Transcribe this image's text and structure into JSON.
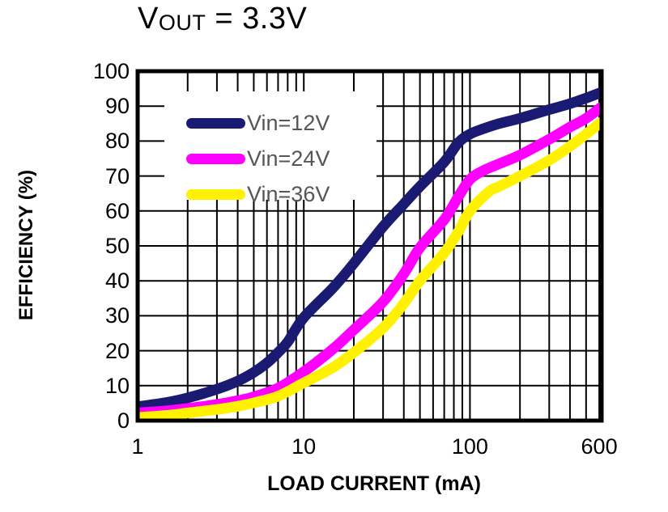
{
  "title": {
    "prefix": "V",
    "subscript": "OUT",
    "suffix": " = 3.3V"
  },
  "colors": {
    "grid": "#000000",
    "border": "#000000",
    "legend_text": "#55565a",
    "background": "#ffffff",
    "series_12v": "#1a1a72",
    "series_24v": "#ff00ff",
    "series_36v": "#fff100"
  },
  "chart_data": {
    "type": "line",
    "title": "VOUT = 3.3V",
    "xlabel": "LOAD CURRENT (mA)",
    "ylabel": "EFFICIENCY (%)",
    "x_scale": "log",
    "xlim": [
      1,
      620
    ],
    "ylim": [
      0,
      100
    ],
    "grid": "on",
    "legend_position": "upper-left-inside",
    "x_ticks": [
      {
        "value": 1,
        "label": "1"
      },
      {
        "value": 10,
        "label": "10"
      },
      {
        "value": 100,
        "label": "100"
      },
      {
        "value": 600,
        "label": "600"
      }
    ],
    "y_ticks": [
      0,
      10,
      20,
      30,
      40,
      50,
      60,
      70,
      80,
      90,
      100
    ],
    "series": [
      {
        "name": "Vin=12V",
        "color": "#1a1a72",
        "x": [
          1,
          1.5,
          2,
          3,
          4,
          5,
          6,
          7,
          8,
          10,
          15,
          20,
          30,
          40,
          50,
          70,
          85,
          100,
          120,
          150,
          200,
          300,
          400,
          500,
          620
        ],
        "y": [
          4,
          5.2,
          6.5,
          9,
          11.3,
          13.8,
          16.5,
          19.5,
          22.5,
          29.5,
          38,
          45,
          55.5,
          62,
          67,
          74,
          79.5,
          82,
          83.5,
          85,
          86.5,
          89,
          90.7,
          92.3,
          94
        ]
      },
      {
        "name": "Vin=24V",
        "color": "#ff00ff",
        "x": [
          1,
          1.5,
          2,
          3,
          4,
          5,
          7,
          10,
          15,
          20,
          30,
          40,
          50,
          70,
          85,
          100,
          120,
          150,
          200,
          300,
          400,
          500,
          620
        ],
        "y": [
          2.2,
          2.8,
          3.5,
          4.6,
          5.7,
          6.8,
          9.3,
          14,
          20.5,
          26,
          34,
          42,
          49.5,
          57.5,
          64,
          69,
          71.5,
          73.5,
          76,
          80.5,
          84,
          86.5,
          89.8
        ]
      },
      {
        "name": "Vin=36V",
        "color": "#fff100",
        "x": [
          1,
          1.5,
          2,
          3,
          4,
          5,
          7,
          10,
          15,
          20,
          30,
          40,
          50,
          70,
          85,
          100,
          130,
          150,
          200,
          300,
          400,
          500,
          620
        ],
        "y": [
          0.9,
          1.5,
          2.2,
          3.2,
          4.1,
          5.1,
          7,
          10.8,
          15.2,
          19.5,
          26.5,
          33.5,
          40,
          48,
          54,
          60,
          65.5,
          67,
          70,
          74.5,
          78.5,
          82,
          85.5
        ]
      }
    ]
  }
}
